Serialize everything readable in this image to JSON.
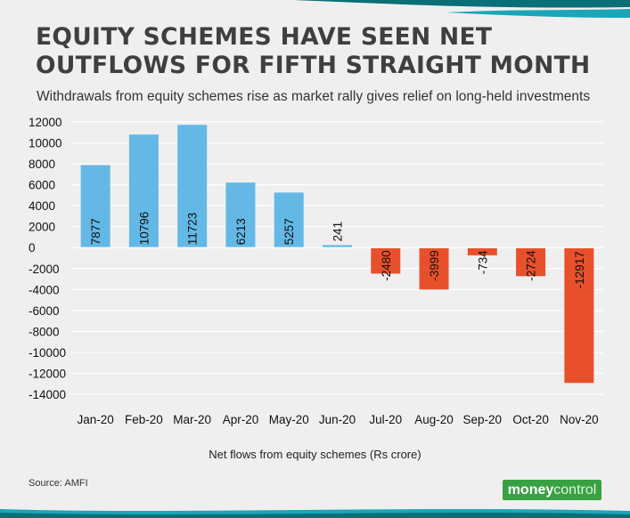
{
  "header": {
    "title_line1": "EQUITY SCHEMES HAVE SEEN NET",
    "title_line2": "OUTFLOWS FOR FIFTH STRAIGHT MONTH",
    "subtitle": "Withdrawals from equity schemes rise as market rally gives relief on long-held investments"
  },
  "footer": {
    "source": "Source: AMFI",
    "brand_part1": "money",
    "brand_part2": "control"
  },
  "colors": {
    "positive": "#63b8e6",
    "negative": "#e8502c",
    "wave_dark": "#0b6f78",
    "wave_light": "#1aa6b8",
    "brand": "#39a142"
  },
  "chart_data": {
    "type": "bar",
    "categories": [
      "Jan-20",
      "Feb-20",
      "Mar-20",
      "Apr-20",
      "May-20",
      "Jun-20",
      "Jul-20",
      "Aug-20",
      "Sep-20",
      "Oct-20",
      "Nov-20"
    ],
    "values": [
      7877,
      10796,
      11723,
      6213,
      5257,
      241,
      -2480,
      -3999,
      -734,
      -2724,
      -12917
    ],
    "data_labels": [
      "7877",
      "10796",
      "11723",
      "6213",
      "5257",
      "241",
      "-2480",
      "-3999",
      "-734",
      "-2724",
      "-12917"
    ],
    "y_ticks": [
      12000,
      10000,
      8000,
      6000,
      4000,
      2000,
      0,
      -2000,
      -4000,
      -6000,
      -8000,
      -10000,
      -12000,
      -14000
    ],
    "y_tick_labels": [
      "12000",
      "10000",
      "8000",
      "6000",
      "4000",
      "2000",
      "0",
      "-2000",
      "-4000",
      "-6000",
      "-8000",
      "-10000",
      "-12000",
      "-14000"
    ],
    "ylim": [
      -14000,
      12000
    ],
    "xlabel": "Net flows from equity schemes (Rs crore)",
    "ylabel": "",
    "grid": true
  }
}
